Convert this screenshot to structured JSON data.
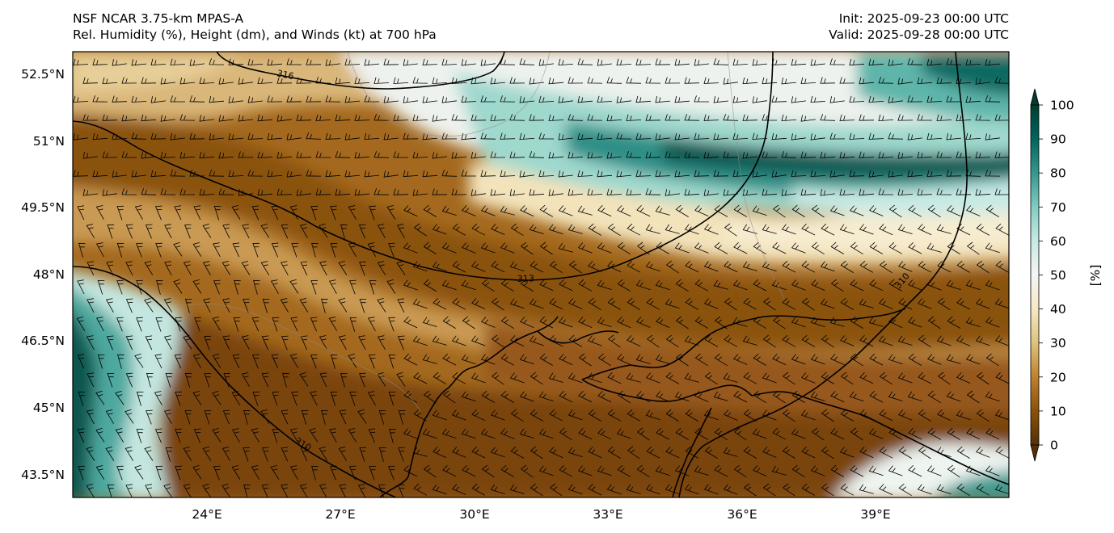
{
  "header": {
    "model": "NSF NCAR 3.75-km MPAS-A",
    "fields": "Rel. Humidity (%), Height (dm), and Winds (kt) at 700 hPa",
    "init": "Init: 2025-09-23 00:00 UTC",
    "valid": "Valid: 2025-09-28 00:00 UTC"
  },
  "map": {
    "lat_labels": [
      "52.5°N",
      "51°N",
      "49.5°N",
      "48°N",
      "46.5°N",
      "45°N",
      "43.5°N"
    ],
    "lon_labels": [
      "24°E",
      "27°E",
      "30°E",
      "33°E",
      "36°E",
      "39°E"
    ],
    "contour_labels": [
      "316",
      "313",
      "310",
      "310"
    ]
  },
  "colorbar": {
    "unit": "[%]",
    "ticks": [
      "0",
      "10",
      "20",
      "30",
      "40",
      "50",
      "60",
      "70",
      "80",
      "90",
      "100"
    ],
    "colors": [
      "#543005",
      "#8c510a",
      "#bf812d",
      "#dfc27d",
      "#f6e8c3",
      "#f5f5f5",
      "#c7eae5",
      "#80cdc1",
      "#35978f",
      "#01665e",
      "#003c30"
    ]
  }
}
